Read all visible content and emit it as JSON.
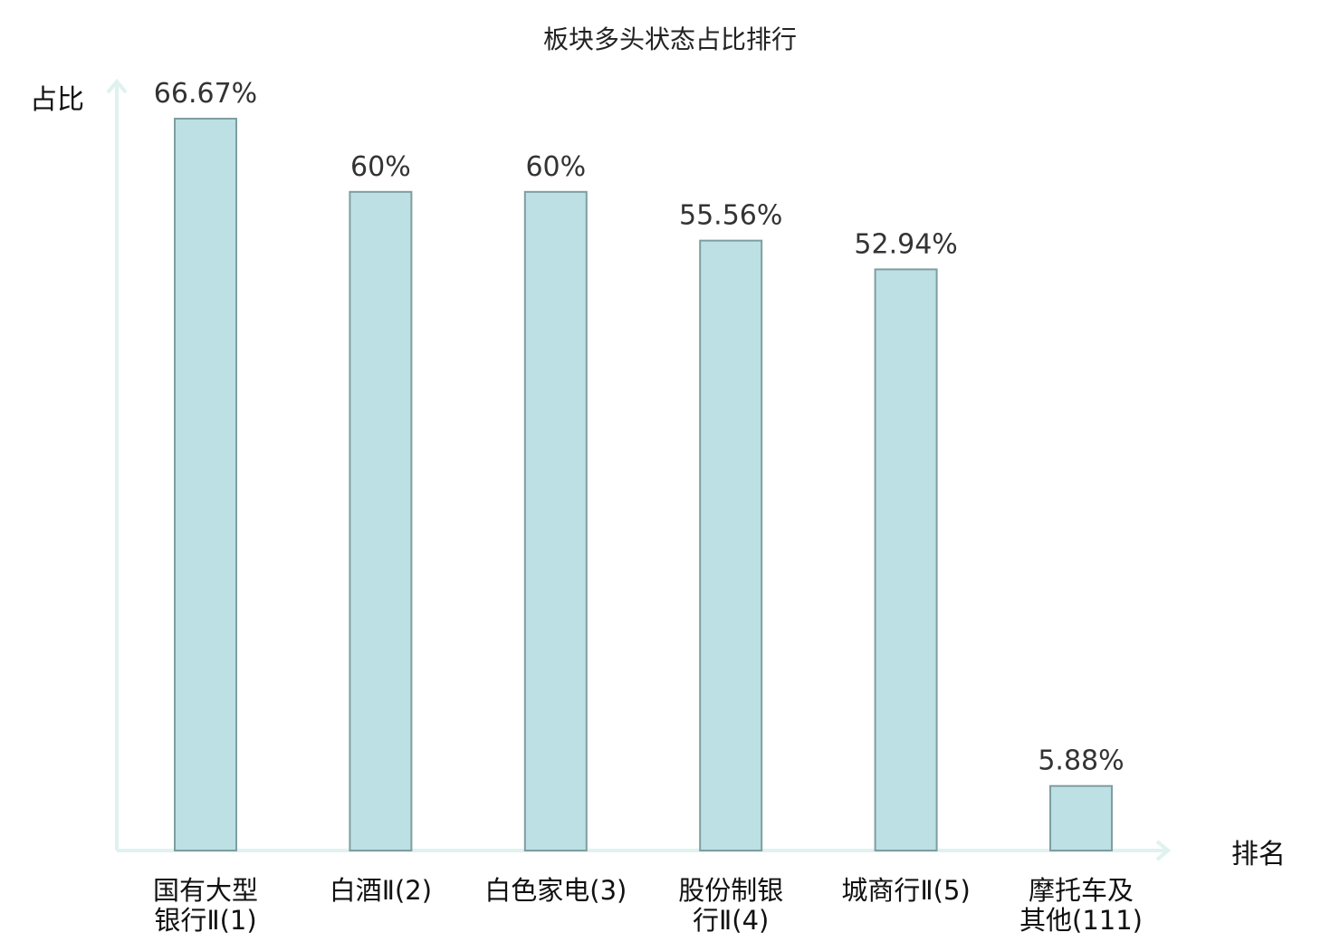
{
  "chart_data": {
    "type": "bar",
    "title": "板块多头状态占比排行",
    "ylabel": "占比",
    "xlabel": "排名",
    "ylim": [
      0,
      70
    ],
    "grid": false,
    "categories": [
      [
        "国有大型",
        "银行Ⅱ(1)"
      ],
      [
        "白酒Ⅱ(2)"
      ],
      [
        "白色家电(3)"
      ],
      [
        "股份制银",
        "行Ⅱ(4)"
      ],
      [
        "城商行Ⅱ(5)"
      ],
      [
        "摩托车及",
        "其他(111)"
      ]
    ],
    "values": [
      66.67,
      60,
      60,
      55.56,
      52.94,
      5.88
    ],
    "value_labels": [
      "66.67%",
      "60%",
      "60%",
      "55.56%",
      "52.94%",
      "5.88%"
    ],
    "category_colors": [
      "#111111",
      "#111111",
      "#111111",
      "#111111",
      "#111111",
      "#e8000b"
    ],
    "bar_color": "#bce0e3",
    "bar_edge_color": "#7e9ea1",
    "axis_color": "#dff2ef"
  }
}
